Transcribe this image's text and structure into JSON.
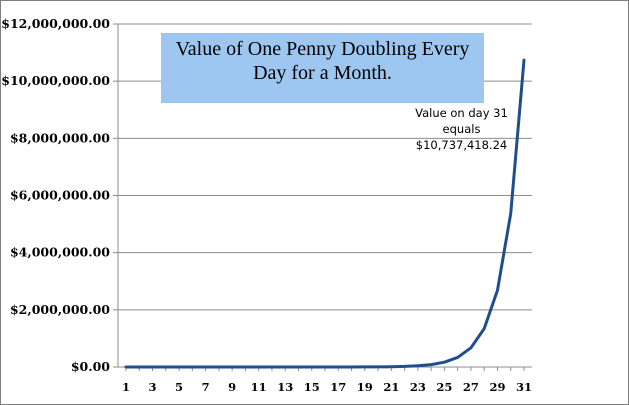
{
  "chart_data": {
    "type": "line",
    "title": "Value of One Penny Doubling Every Day for a Month.",
    "annotation": {
      "line1": "Value on day 31",
      "line2": "equals",
      "line3": "$10,737,418.24"
    },
    "xlabel": "",
    "ylabel": "",
    "ylim": [
      0,
      12000000
    ],
    "xlim": [
      1,
      31
    ],
    "grid": "horizontal",
    "legend": "none",
    "line_color": "#1f4e8c",
    "yticks": [
      "$0.00",
      "$2,000,000.00",
      "$4,000,000.00",
      "$6,000,000.00",
      "$8,000,000.00",
      "$10,000,000.00",
      "$12,000,000.00"
    ],
    "ytick_values": [
      0,
      2000000,
      4000000,
      6000000,
      8000000,
      10000000,
      12000000
    ],
    "xticks": [
      "1",
      "3",
      "5",
      "7",
      "9",
      "11",
      "13",
      "15",
      "17",
      "19",
      "21",
      "23",
      "25",
      "27",
      "29",
      "31"
    ],
    "xtick_values": [
      1,
      3,
      5,
      7,
      9,
      11,
      13,
      15,
      17,
      19,
      21,
      23,
      25,
      27,
      29,
      31
    ],
    "x": [
      1,
      2,
      3,
      4,
      5,
      6,
      7,
      8,
      9,
      10,
      11,
      12,
      13,
      14,
      15,
      16,
      17,
      18,
      19,
      20,
      21,
      22,
      23,
      24,
      25,
      26,
      27,
      28,
      29,
      30,
      31
    ],
    "values": [
      0.01,
      0.02,
      0.04,
      0.08,
      0.16,
      0.32,
      0.64,
      1.28,
      2.56,
      5.12,
      10.24,
      20.48,
      40.96,
      81.92,
      163.84,
      327.68,
      655.36,
      1310.72,
      2621.44,
      5242.88,
      10485.76,
      20971.52,
      41943.04,
      83886.08,
      167772.16,
      335544.32,
      671088.64,
      1342177.28,
      2684354.56,
      5368709.12,
      10737418.24
    ]
  }
}
